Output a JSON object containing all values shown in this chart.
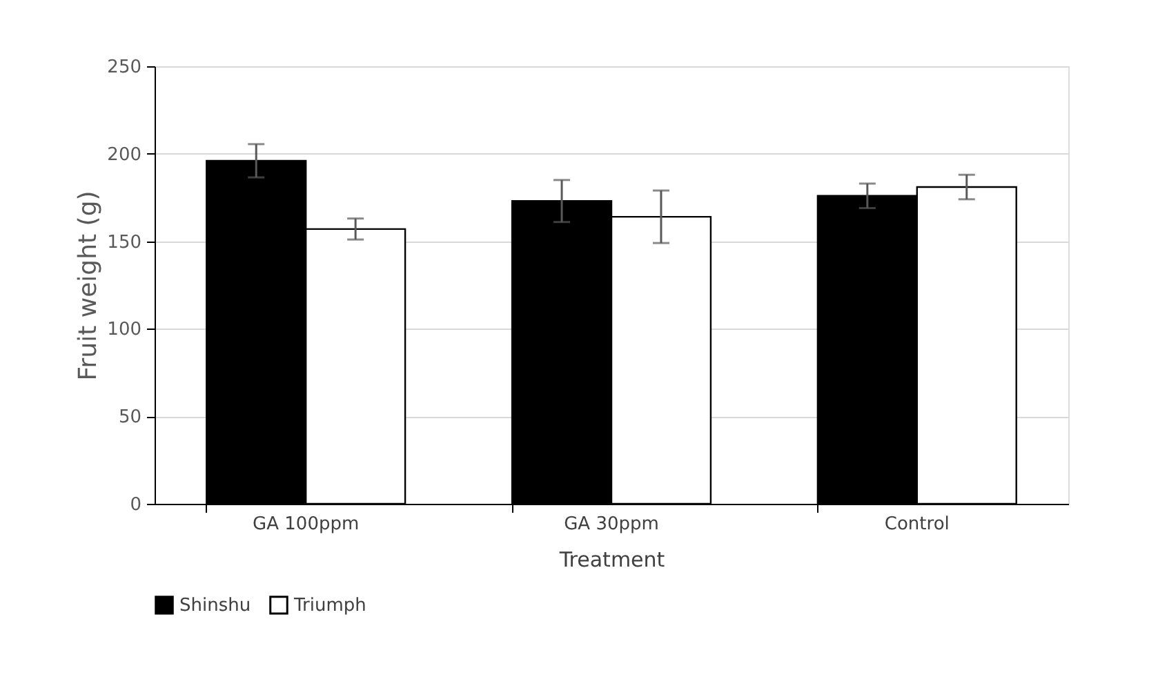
{
  "chart_data": {
    "type": "bar",
    "xlabel": "Treatment",
    "ylabel": "Fruit weight (g)",
    "categories": [
      "GA 100ppm",
      "GA 30ppm",
      "Control"
    ],
    "series": [
      {
        "name": "Shinshu",
        "color": "#000000",
        "values": [
          196,
          173,
          176
        ],
        "errors": [
          9.5,
          12,
          7
        ]
      },
      {
        "name": "Triumph",
        "color": "#ffffff",
        "values": [
          157,
          164,
          181
        ],
        "errors": [
          6,
          15,
          7
        ]
      }
    ],
    "ylim": [
      0,
      250
    ],
    "yticks": [
      0,
      50,
      100,
      150,
      200,
      250
    ],
    "grid": "y",
    "legend": "bottom"
  }
}
